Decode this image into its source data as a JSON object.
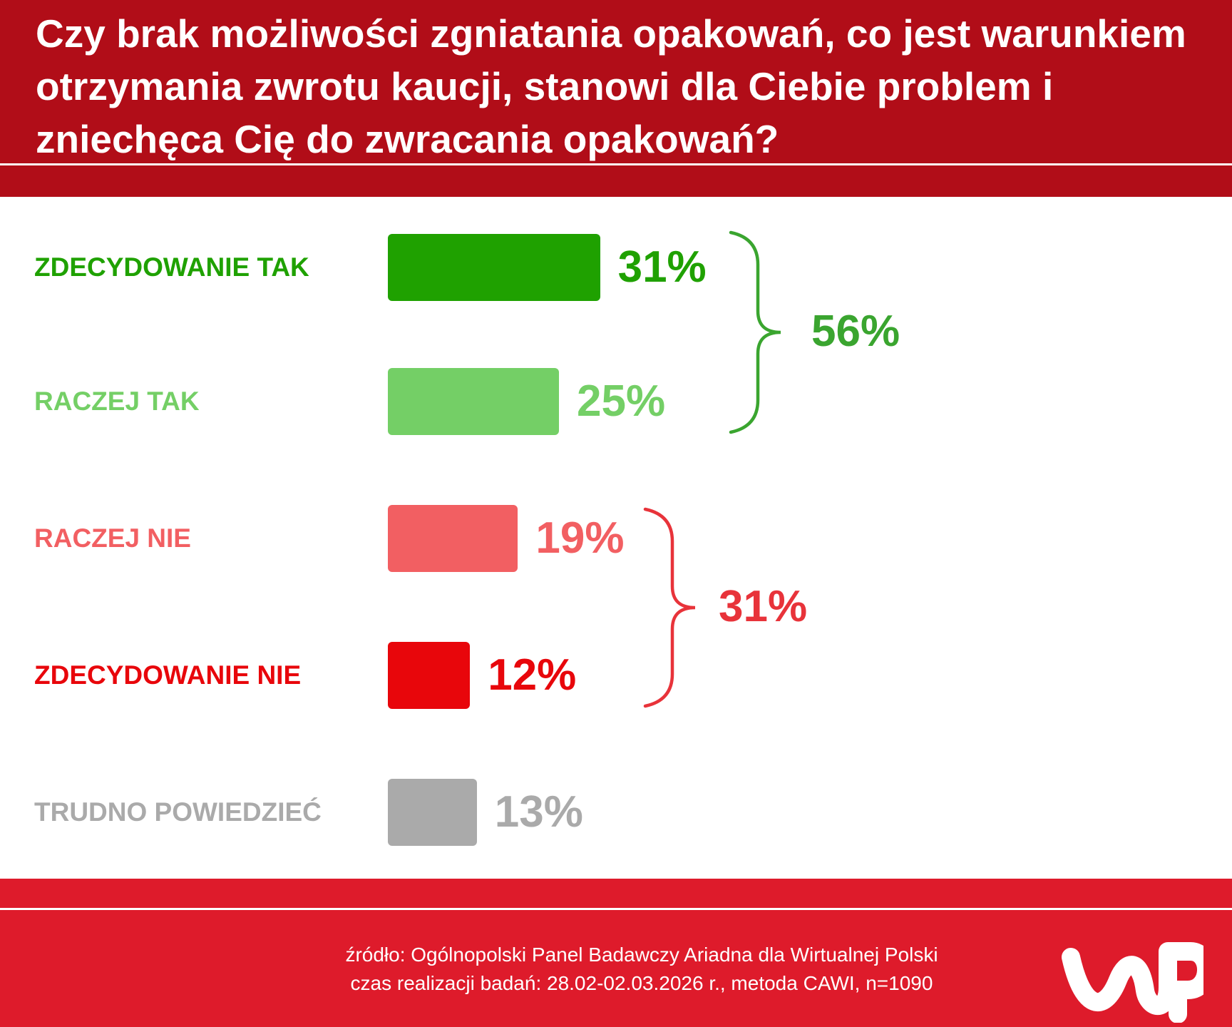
{
  "title": "Czy brak możliwości zgniatania opakowań, co jest warunkiem otrzymania zwrotu kaucji, stanowi dla Ciebie problem i zniechęca Cię do zwracania opakowań?",
  "chart_data": {
    "type": "bar",
    "orientation": "horizontal",
    "title": "Czy brak możliwości zgniatania opakowań, co jest warunkiem otrzymania zwrotu kaucji, stanowi dla Ciebie problem i zniechęca Cię do zwracania opakowań?",
    "categories": [
      "ZDECYDOWANIE TAK",
      "RACZEJ TAK",
      "RACZEJ NIE",
      "ZDECYDOWANIE NIE",
      "TRUDNO POWIEDZIEĆ"
    ],
    "values": [
      31,
      25,
      19,
      12,
      13
    ],
    "value_labels": [
      "31%",
      "25%",
      "19%",
      "12%",
      "13%"
    ],
    "unit": "%",
    "colors": [
      "#1fa100",
      "#74cf66",
      "#f25f62",
      "#e8060b",
      "#aaaaaa"
    ],
    "groups": [
      {
        "label": "56%",
        "value": 56,
        "members": [
          "ZDECYDOWANIE TAK",
          "RACZEJ TAK"
        ],
        "color": "#3aa52f"
      },
      {
        "label": "31%",
        "value": 31,
        "members": [
          "RACZEJ NIE",
          "ZDECYDOWANIE NIE"
        ],
        "color": "#e8333a"
      }
    ],
    "grid": false,
    "legend": "none"
  },
  "footer": {
    "source": "źródło: Ogólnopolski Panel Badawczy Ariadna dla Wirtualnej Polski",
    "period": "czas realizacji badań: 28.02-02.03.2026 r., metoda CAWI, n=1090"
  },
  "logo": {
    "icon": "wp-logo",
    "text": "WP"
  },
  "colors": {
    "header": "#b10d18",
    "footer": "#de1b2b",
    "background": "#ffffff"
  }
}
